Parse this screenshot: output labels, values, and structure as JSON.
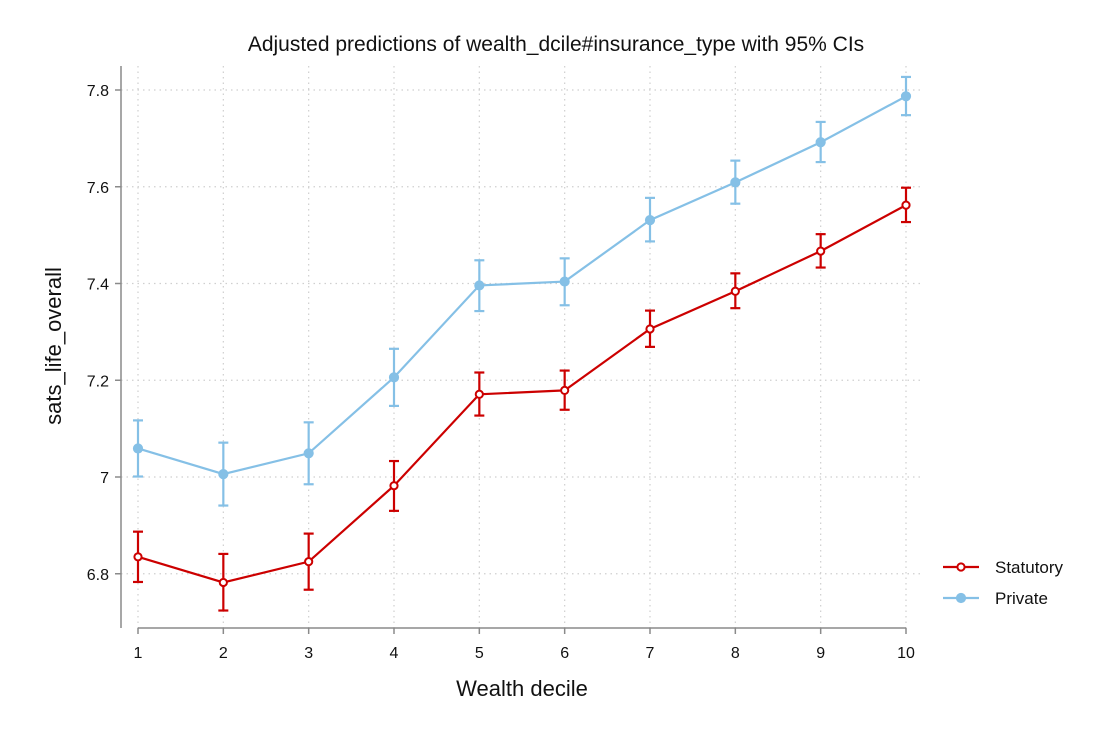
{
  "chart_data": {
    "type": "line",
    "title": "Adjusted predictions of wealth_dcile#insurance_type with 95% CIs",
    "xlabel": "Wealth decile",
    "ylabel": "sats_life_overall",
    "x": [
      1,
      2,
      3,
      4,
      5,
      6,
      7,
      8,
      9,
      10
    ],
    "x_ticks": [
      "1",
      "2",
      "3",
      "4",
      "5",
      "6",
      "7",
      "8",
      "9",
      "10"
    ],
    "y_ticks": [
      "6.8",
      "7",
      "7.2",
      "7.4",
      "7.6",
      "7.8"
    ],
    "y_tick_values": [
      6.8,
      7.0,
      7.2,
      7.4,
      7.6,
      7.8
    ],
    "xlim": [
      1,
      10
    ],
    "ylim": [
      6.69,
      7.87
    ],
    "grid": true,
    "legend_position": "right",
    "series": [
      {
        "name": "Statutory",
        "color": "#cc0000",
        "marker": "hollow-circle",
        "values": [
          6.835,
          6.782,
          6.825,
          6.982,
          7.171,
          7.179,
          7.306,
          7.384,
          7.467,
          7.562
        ],
        "ci_lower": [
          6.783,
          6.724,
          6.767,
          6.93,
          7.127,
          7.139,
          7.269,
          7.349,
          7.433,
          7.527
        ],
        "ci_upper": [
          6.887,
          6.841,
          6.883,
          7.033,
          7.216,
          7.22,
          7.344,
          7.421,
          7.502,
          7.598
        ]
      },
      {
        "name": "Private",
        "color": "#85c0e6",
        "marker": "filled-circle",
        "values": [
          7.059,
          7.006,
          7.049,
          7.206,
          7.396,
          7.404,
          7.531,
          7.609,
          7.692,
          7.787
        ],
        "ci_lower": [
          7.001,
          6.941,
          6.985,
          7.147,
          7.343,
          7.355,
          7.487,
          7.565,
          7.651,
          7.748
        ],
        "ci_upper": [
          7.117,
          7.071,
          7.113,
          7.265,
          7.448,
          7.452,
          7.577,
          7.654,
          7.734,
          7.827
        ]
      }
    ]
  }
}
